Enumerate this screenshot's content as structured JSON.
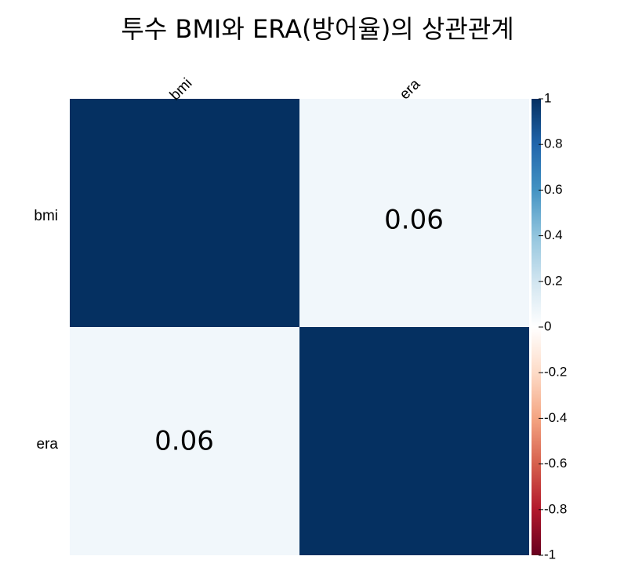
{
  "chart_data": {
    "type": "heatmap",
    "title": "투수 BMI와 ERA(방어율)의 상관관계",
    "variables": [
      "bmi",
      "era"
    ],
    "matrix": [
      [
        1,
        0.06
      ],
      [
        0.06,
        1
      ]
    ],
    "cell_labels": [
      [
        "",
        "0.06"
      ],
      [
        "0.06",
        ""
      ]
    ],
    "colorbar": {
      "range": [
        -1,
        1
      ],
      "ticks": [
        "1",
        "0.8",
        "0.6",
        "0.4",
        "0.2",
        "0",
        "-0.2",
        "-0.4",
        "-0.6",
        "-0.8",
        "-1"
      ],
      "colors": [
        "#67001f",
        "#b2182b",
        "#d6604d",
        "#f4a582",
        "#fddbc7",
        "#ffffff",
        "#d1e5f0",
        "#92c5de",
        "#4393c3",
        "#2166ac",
        "#053061"
      ]
    }
  }
}
